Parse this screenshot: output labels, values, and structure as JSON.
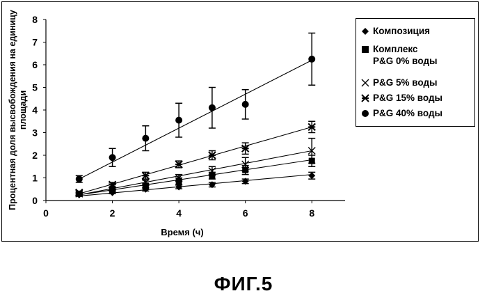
{
  "chart_data": {
    "type": "scatter",
    "title": "",
    "xlabel": "Время (ч)",
    "ylabel": "Процентная доля высвобождения на единицу площади",
    "xlim": [
      0,
      9
    ],
    "ylim": [
      0,
      8
    ],
    "xticks": [
      0,
      2,
      4,
      6,
      8
    ],
    "yticks": [
      0,
      1,
      2,
      3,
      4,
      5,
      6,
      7,
      8
    ],
    "grid": false,
    "legend_position": "right",
    "series": [
      {
        "name": "Композиция",
        "marker": "diamond",
        "x": [
          1,
          2,
          3,
          4,
          5,
          6,
          8
        ],
        "y": [
          0.25,
          0.35,
          0.5,
          0.6,
          0.7,
          0.85,
          1.1
        ],
        "err": [
          0.05,
          0.05,
          0.08,
          0.08,
          0.1,
          0.1,
          0.15
        ],
        "fit": [
          [
            1,
            0.2
          ],
          [
            8,
            1.15
          ]
        ]
      },
      {
        "name": "Комплекс\nP&G 0% воды",
        "marker": "square",
        "x": [
          1,
          2,
          3,
          4,
          5,
          6,
          8
        ],
        "y": [
          0.3,
          0.5,
          0.65,
          0.85,
          1.1,
          1.35,
          1.75
        ],
        "err": [
          0.05,
          0.1,
          0.1,
          0.15,
          0.15,
          0.2,
          0.25
        ],
        "fit": [
          [
            1,
            0.25
          ],
          [
            8,
            1.8
          ]
        ]
      },
      {
        "name": "P&G 5% воды",
        "marker": "x",
        "x": [
          1,
          2,
          3,
          4,
          5,
          6,
          8
        ],
        "y": [
          0.3,
          0.6,
          0.8,
          1.0,
          1.3,
          1.6,
          2.2
        ],
        "err": [
          0.05,
          0.1,
          0.1,
          0.15,
          0.2,
          0.3,
          0.55
        ],
        "fit": [
          [
            1,
            0.25
          ],
          [
            8,
            2.2
          ]
        ]
      },
      {
        "name": "P&G 15% воды",
        "marker": "asterisk",
        "x": [
          1,
          2,
          3,
          4,
          5,
          6,
          8
        ],
        "y": [
          0.35,
          0.7,
          1.1,
          1.6,
          2.0,
          2.3,
          3.25
        ],
        "err": [
          0.05,
          0.1,
          0.15,
          0.15,
          0.2,
          0.25,
          0.25
        ],
        "fit": [
          [
            1,
            0.3
          ],
          [
            8,
            3.25
          ]
        ]
      },
      {
        "name": "P&G 40% воды",
        "marker": "circle",
        "x": [
          1,
          2,
          3,
          4,
          5,
          6,
          8
        ],
        "y": [
          0.95,
          1.9,
          2.75,
          3.55,
          4.1,
          4.25,
          6.25
        ],
        "err": [
          0.15,
          0.4,
          0.55,
          0.75,
          0.9,
          0.65,
          1.15
        ],
        "fit": [
          [
            1,
            0.95
          ],
          [
            8,
            6.2
          ]
        ]
      }
    ]
  },
  "caption": "ФИГ.5"
}
